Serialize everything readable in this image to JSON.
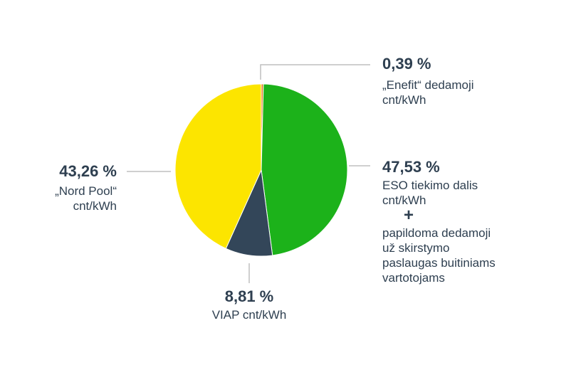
{
  "chart_data": {
    "type": "pie",
    "title": "",
    "slices": [
      {
        "label": "„Enefit“ dedamoji cnt/kWh",
        "value": 0.39,
        "value_label": "0,39 %",
        "color": "#e37a1e"
      },
      {
        "label": "ESO tiekimo dalis cnt/kWh + papildoma dedamoji už skirstymo paslaugas buitiniams vartotojams",
        "value": 47.53,
        "value_label": "47,53 %",
        "color": "#1cb21a"
      },
      {
        "label": "VIAP cnt/kWh",
        "value": 8.81,
        "value_label": "8,81 %",
        "color": "#334659"
      },
      {
        "label": "„Nord Pool“ cnt/kWh",
        "value": 43.26,
        "value_label": "43,26 %",
        "color": "#fce500"
      }
    ],
    "legend": "none",
    "leader_line_color": "#bfbfbf"
  },
  "labels": {
    "enefit": {
      "pct": "0,39 %",
      "line1": "„Enefit“ dedamoji",
      "line2": "cnt/kWh"
    },
    "eso": {
      "pct": "47,53 %",
      "line1": "ESO tiekimo dalis",
      "line2": "cnt/kWh",
      "plus": "+",
      "extra1": "papildoma dedamoji",
      "extra2": "už skirstymo",
      "extra3": "paslaugas buitiniams",
      "extra4": "vartotojams"
    },
    "viap": {
      "pct": "8,81 %",
      "line1": "VIAP cnt/kWh"
    },
    "nordpool": {
      "pct": "43,26 %",
      "line1": "„Nord Pool“",
      "line2": "cnt/kWh"
    }
  }
}
